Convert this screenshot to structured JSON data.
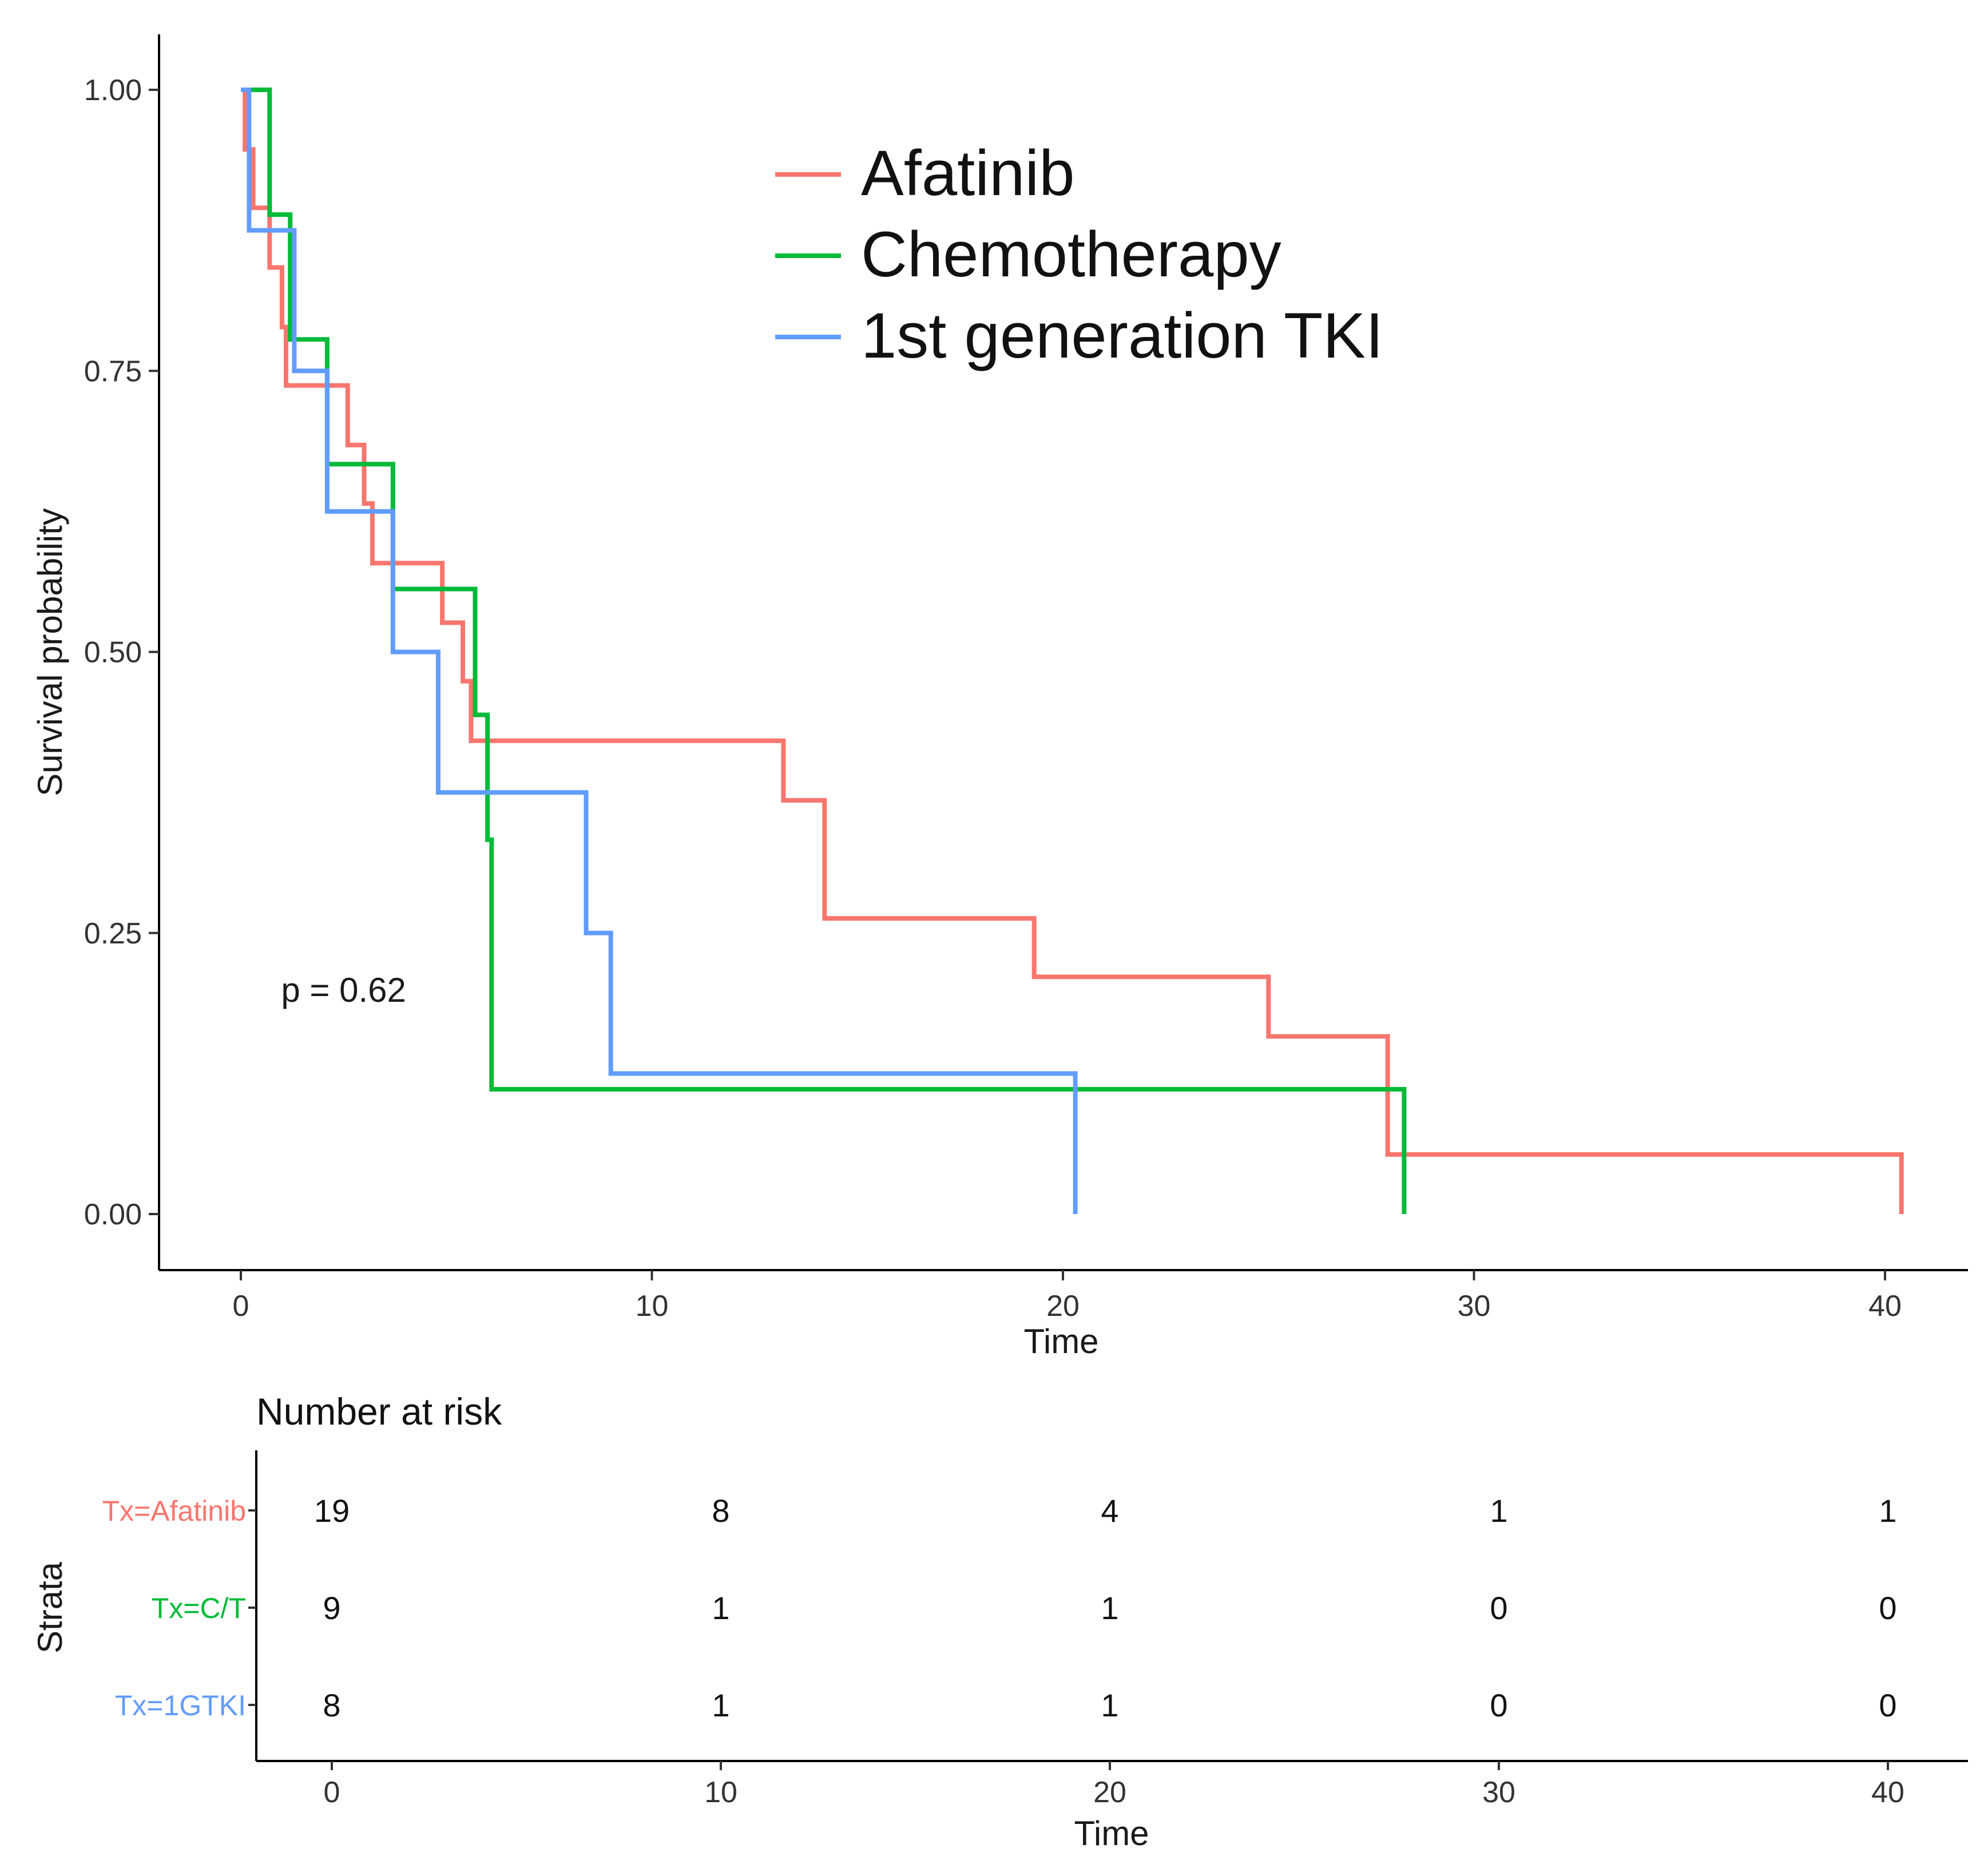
{
  "chart_data": [
    {
      "type": "line",
      "subtype": "kaplan-meier",
      "title": "",
      "xlabel": "Time",
      "ylabel": "Survival probability",
      "xlim": [
        -2,
        42
      ],
      "ylim": [
        -0.05,
        1.05
      ],
      "x_ticks": [
        0,
        10,
        20,
        30,
        40
      ],
      "x_tick_labels": [
        "0",
        "10",
        "20",
        "30",
        "40"
      ],
      "y_ticks": [
        0,
        0.25,
        0.5,
        0.75,
        1.0
      ],
      "y_tick_labels": [
        "0.00",
        "0.25",
        "0.50",
        "0.75",
        "1.00"
      ],
      "grid": false,
      "legend_position": "top-center",
      "annotation": "p = 0.62",
      "annotation_at": {
        "x": 2.5,
        "y": 0.2
      },
      "series": [
        {
          "name": "Afatinib",
          "color": "#f8766d",
          "steps": [
            [
              0,
              1.0
            ],
            [
              0.1,
              0.947
            ],
            [
              0.3,
              0.895
            ],
            [
              0.7,
              0.842
            ],
            [
              1.0,
              0.789
            ],
            [
              1.1,
              0.737
            ],
            [
              2.2,
              0.737
            ],
            [
              2.6,
              0.684
            ],
            [
              3.0,
              0.632
            ],
            [
              3.2,
              0.579
            ],
            [
              4.9,
              0.526
            ],
            [
              5.4,
              0.474
            ],
            [
              5.6,
              0.421
            ],
            [
              13.1,
              0.421
            ],
            [
              13.2,
              0.368
            ],
            [
              14.2,
              0.263
            ],
            [
              19.3,
              0.211
            ],
            [
              25.0,
              0.158
            ],
            [
              27.9,
              0.053
            ],
            [
              40.4,
              0.053
            ],
            [
              40.4,
              0.0
            ]
          ]
        },
        {
          "name": "Chemotherapy",
          "color": "#00ba38",
          "steps": [
            [
              0,
              1.0
            ],
            [
              0.7,
              0.889
            ],
            [
              1.2,
              0.778
            ],
            [
              2.1,
              0.667
            ],
            [
              3.7,
              0.556
            ],
            [
              5.7,
              0.444
            ],
            [
              6.0,
              0.333
            ],
            [
              6.1,
              0.111
            ],
            [
              28.3,
              0.111
            ],
            [
              28.3,
              0.0
            ]
          ]
        },
        {
          "name": "1st generation TKI",
          "color": "#619cff",
          "steps": [
            [
              0,
              1.0
            ],
            [
              0.2,
              0.875
            ],
            [
              1.3,
              0.75
            ],
            [
              2.1,
              0.625
            ],
            [
              3.7,
              0.5
            ],
            [
              4.8,
              0.375
            ],
            [
              8.4,
              0.25
            ],
            [
              9.0,
              0.125
            ],
            [
              20.3,
              0.125
            ],
            [
              20.3,
              0.0
            ]
          ]
        }
      ]
    },
    {
      "type": "table",
      "title": "Number at risk",
      "ylabel": "Strata",
      "xlabel": "Time",
      "x_ticks": [
        0,
        10,
        20,
        30,
        40
      ],
      "x_tick_labels": [
        "0",
        "10",
        "20",
        "30",
        "40"
      ],
      "rows": [
        {
          "label": "Tx=Afatinib",
          "color": "#f8766d",
          "values": [
            "19",
            "8",
            "4",
            "1",
            "1"
          ]
        },
        {
          "label": "Tx=C/T",
          "color": "#00ba38",
          "values": [
            "9",
            "1",
            "1",
            "0",
            "0"
          ]
        },
        {
          "label": "Tx=1GTKI",
          "color": "#619cff",
          "values": [
            "8",
            "1",
            "1",
            "0",
            "0"
          ]
        }
      ]
    }
  ]
}
